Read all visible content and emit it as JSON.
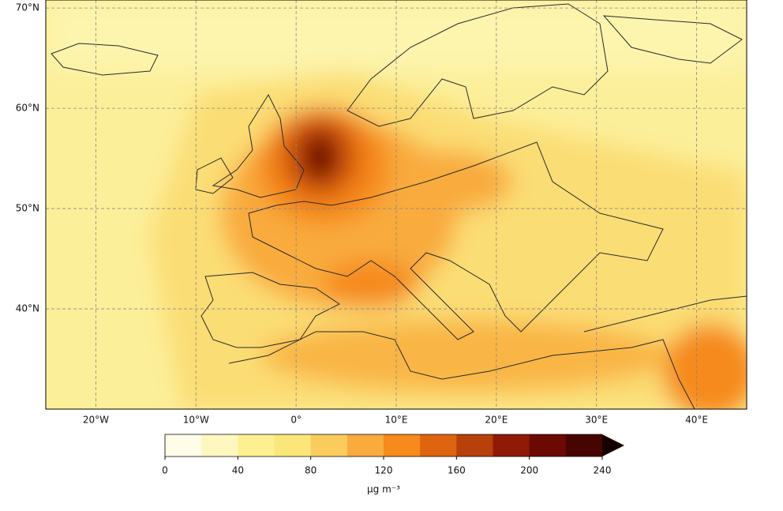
{
  "map": {
    "lon_lim": [
      -25,
      45
    ],
    "lat_lim": [
      30,
      70.8
    ],
    "grid": true,
    "lon_ticks": [
      {
        "value": -20,
        "label": "20°W"
      },
      {
        "value": -10,
        "label": "10°W"
      },
      {
        "value": 0,
        "label": "0°"
      },
      {
        "value": 10,
        "label": "10°E"
      },
      {
        "value": 20,
        "label": "20°E"
      },
      {
        "value": 30,
        "label": "30°E"
      },
      {
        "value": 40,
        "label": "40°E"
      }
    ],
    "lat_ticks": [
      {
        "value": 70,
        "label": "70°N"
      },
      {
        "value": 60,
        "label": "60°N"
      },
      {
        "value": 50,
        "label": "50°N"
      },
      {
        "value": 40,
        "label": "40°N"
      }
    ],
    "colorbar": {
      "range": [
        0,
        240
      ],
      "ticks": [
        0,
        40,
        80,
        120,
        160,
        200,
        240
      ],
      "label": "μg m⁻³",
      "colors": [
        "#fffce8",
        "#fff7c0",
        "#fdf08f",
        "#fbe67a",
        "#fbcb5c",
        "#f9ab3d",
        "#f68a1c",
        "#df6410",
        "#b8400a",
        "#8f1a05",
        "#6b0a02",
        "#480400"
      ],
      "extend_color": "#160000"
    }
  }
}
